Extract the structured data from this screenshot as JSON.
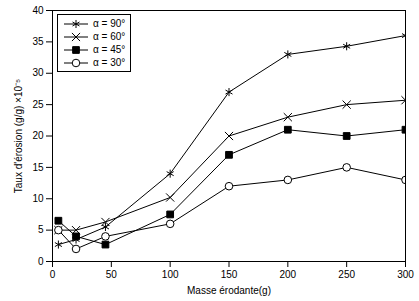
{
  "chart_data": {
    "type": "line",
    "xlabel": "Masse érodante(g)",
    "ylabel": "Taux d'érosion (g/g) ×10⁻⁵",
    "x": [
      5,
      20,
      45,
      100,
      150,
      200,
      250,
      300
    ],
    "series": [
      {
        "name": "α = 90°",
        "color": "#000000",
        "marker": "asterisk",
        "values": [
          2.7,
          3.5,
          5.5,
          14,
          27,
          33,
          34.3,
          36
        ]
      },
      {
        "name": "α = 60°",
        "color": "#000000",
        "marker": "times",
        "values": [
          5,
          5,
          6.3,
          10.2,
          20,
          23,
          25,
          25.7
        ]
      },
      {
        "name": "α = 45°",
        "color": "#000000",
        "marker": "square",
        "values": [
          6.5,
          4,
          2.7,
          7.5,
          17,
          21,
          20,
          21
        ]
      },
      {
        "name": "α = 30°",
        "color": "#000000",
        "marker": "circle-open",
        "values": [
          5,
          2,
          4,
          6,
          12,
          13,
          15,
          13
        ]
      }
    ],
    "xlim": [
      0,
      300
    ],
    "xticks": [
      0,
      50,
      100,
      150,
      200,
      250,
      300
    ],
    "ylim": [
      0,
      40
    ],
    "yticks": [
      0,
      5,
      10,
      15,
      20,
      25,
      30,
      35,
      40
    ],
    "grid": false,
    "legend": "upper left"
  }
}
